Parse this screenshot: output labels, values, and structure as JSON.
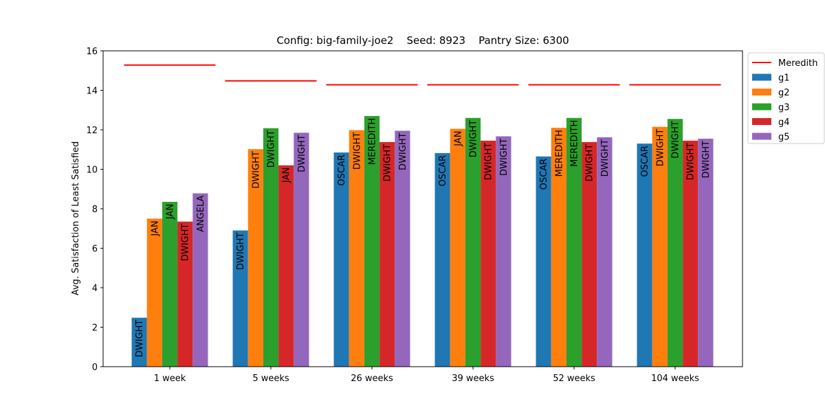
{
  "chart_data": {
    "type": "bar",
    "title": "Config: big-family-joe2    Seed: 8923    Pantry Size: 6300",
    "xlabel": "",
    "ylabel": "Avg. Satisfaction of Least Satisfied",
    "ylim": [
      0,
      16
    ],
    "yticks": [
      0,
      2,
      4,
      6,
      8,
      10,
      12,
      14,
      16
    ],
    "categories": [
      "1 week",
      "5 weeks",
      "26 weeks",
      "39 weeks",
      "52 weeks",
      "104 weeks"
    ],
    "series": [
      {
        "name": "g1",
        "color": "#1f77b4",
        "values": [
          2.48,
          6.9,
          10.85,
          10.82,
          10.65,
          11.3
        ],
        "labels": [
          "DWIGHT",
          "DWIGHT",
          "OSCAR",
          "OSCAR",
          "OSCAR",
          "OSCAR"
        ]
      },
      {
        "name": "g2",
        "color": "#ff7f0e",
        "values": [
          7.5,
          11.02,
          11.98,
          12.05,
          12.1,
          12.15
        ],
        "labels": [
          "JAN",
          "DWIGHT",
          "DWIGHT",
          "JAN",
          "MEREDITH",
          "DWIGHT"
        ]
      },
      {
        "name": "g3",
        "color": "#2ca02c",
        "values": [
          8.35,
          12.08,
          12.7,
          12.6,
          12.6,
          12.55
        ],
        "labels": [
          "JAN",
          "DWIGHT",
          "MEREDITH",
          "DWIGHT",
          "MEREDITH",
          "DWIGHT"
        ]
      },
      {
        "name": "g4",
        "color": "#d62728",
        "values": [
          7.35,
          10.2,
          11.38,
          11.45,
          11.38,
          11.45
        ],
        "labels": [
          "DWIGHT",
          "JAN",
          "DWIGHT",
          "DWIGHT",
          "DWIGHT",
          "DWIGHT"
        ]
      },
      {
        "name": "g5",
        "color": "#9467bd",
        "values": [
          8.78,
          11.85,
          11.95,
          11.67,
          11.62,
          11.55
        ],
        "labels": [
          "ANGELA",
          "DWIGHT",
          "DWIGHT",
          "DWIGHT",
          "DWIGHT",
          "DWIGHT"
        ]
      }
    ],
    "reference_line": {
      "name": "Meredith",
      "color": "#ff0000",
      "values": [
        15.28,
        14.48,
        14.28,
        14.28,
        14.28,
        14.28
      ]
    },
    "legend_placement": "outside-top-right",
    "grid": false
  }
}
